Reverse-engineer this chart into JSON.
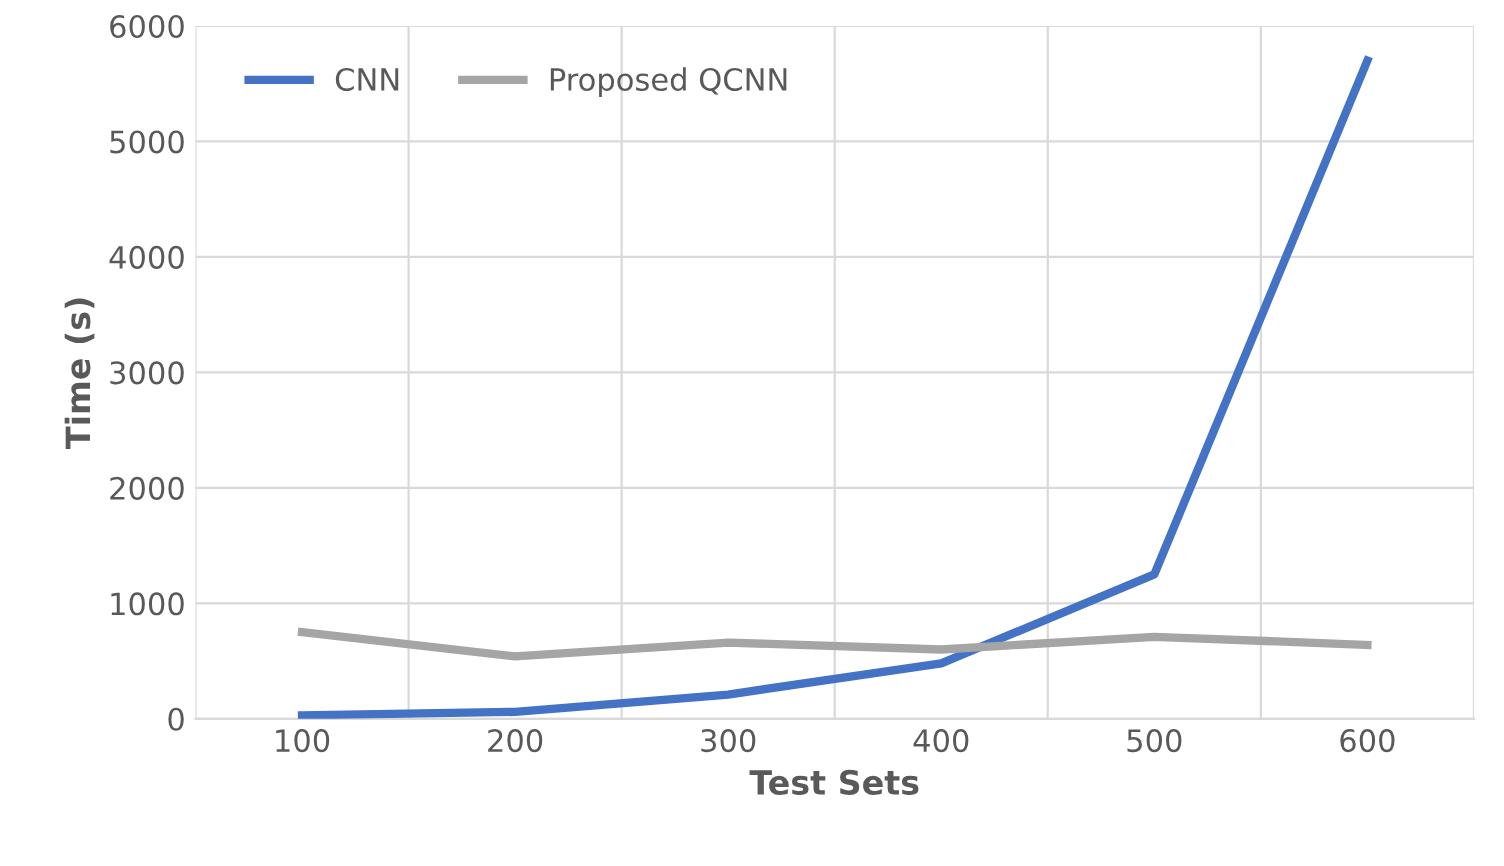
{
  "chart_data": {
    "type": "line",
    "xlabel": "Test Sets",
    "ylabel": "Time (s)",
    "categories": [
      "100",
      "200",
      "300",
      "400",
      "500",
      "600"
    ],
    "series": [
      {
        "name": "CNN",
        "color": "#4472c4",
        "values": [
          30,
          60,
          210,
          480,
          1250,
          5700
        ]
      },
      {
        "name": "Proposed QCNN",
        "color": "#a5a5a5",
        "values": [
          750,
          540,
          660,
          600,
          710,
          640
        ]
      }
    ],
    "ylim": [
      0,
      6000
    ],
    "yticks": [
      0,
      1000,
      2000,
      3000,
      4000,
      5000,
      6000
    ],
    "grid": true,
    "legend": "top left",
    "marker": "none",
    "line_style": "solid"
  }
}
